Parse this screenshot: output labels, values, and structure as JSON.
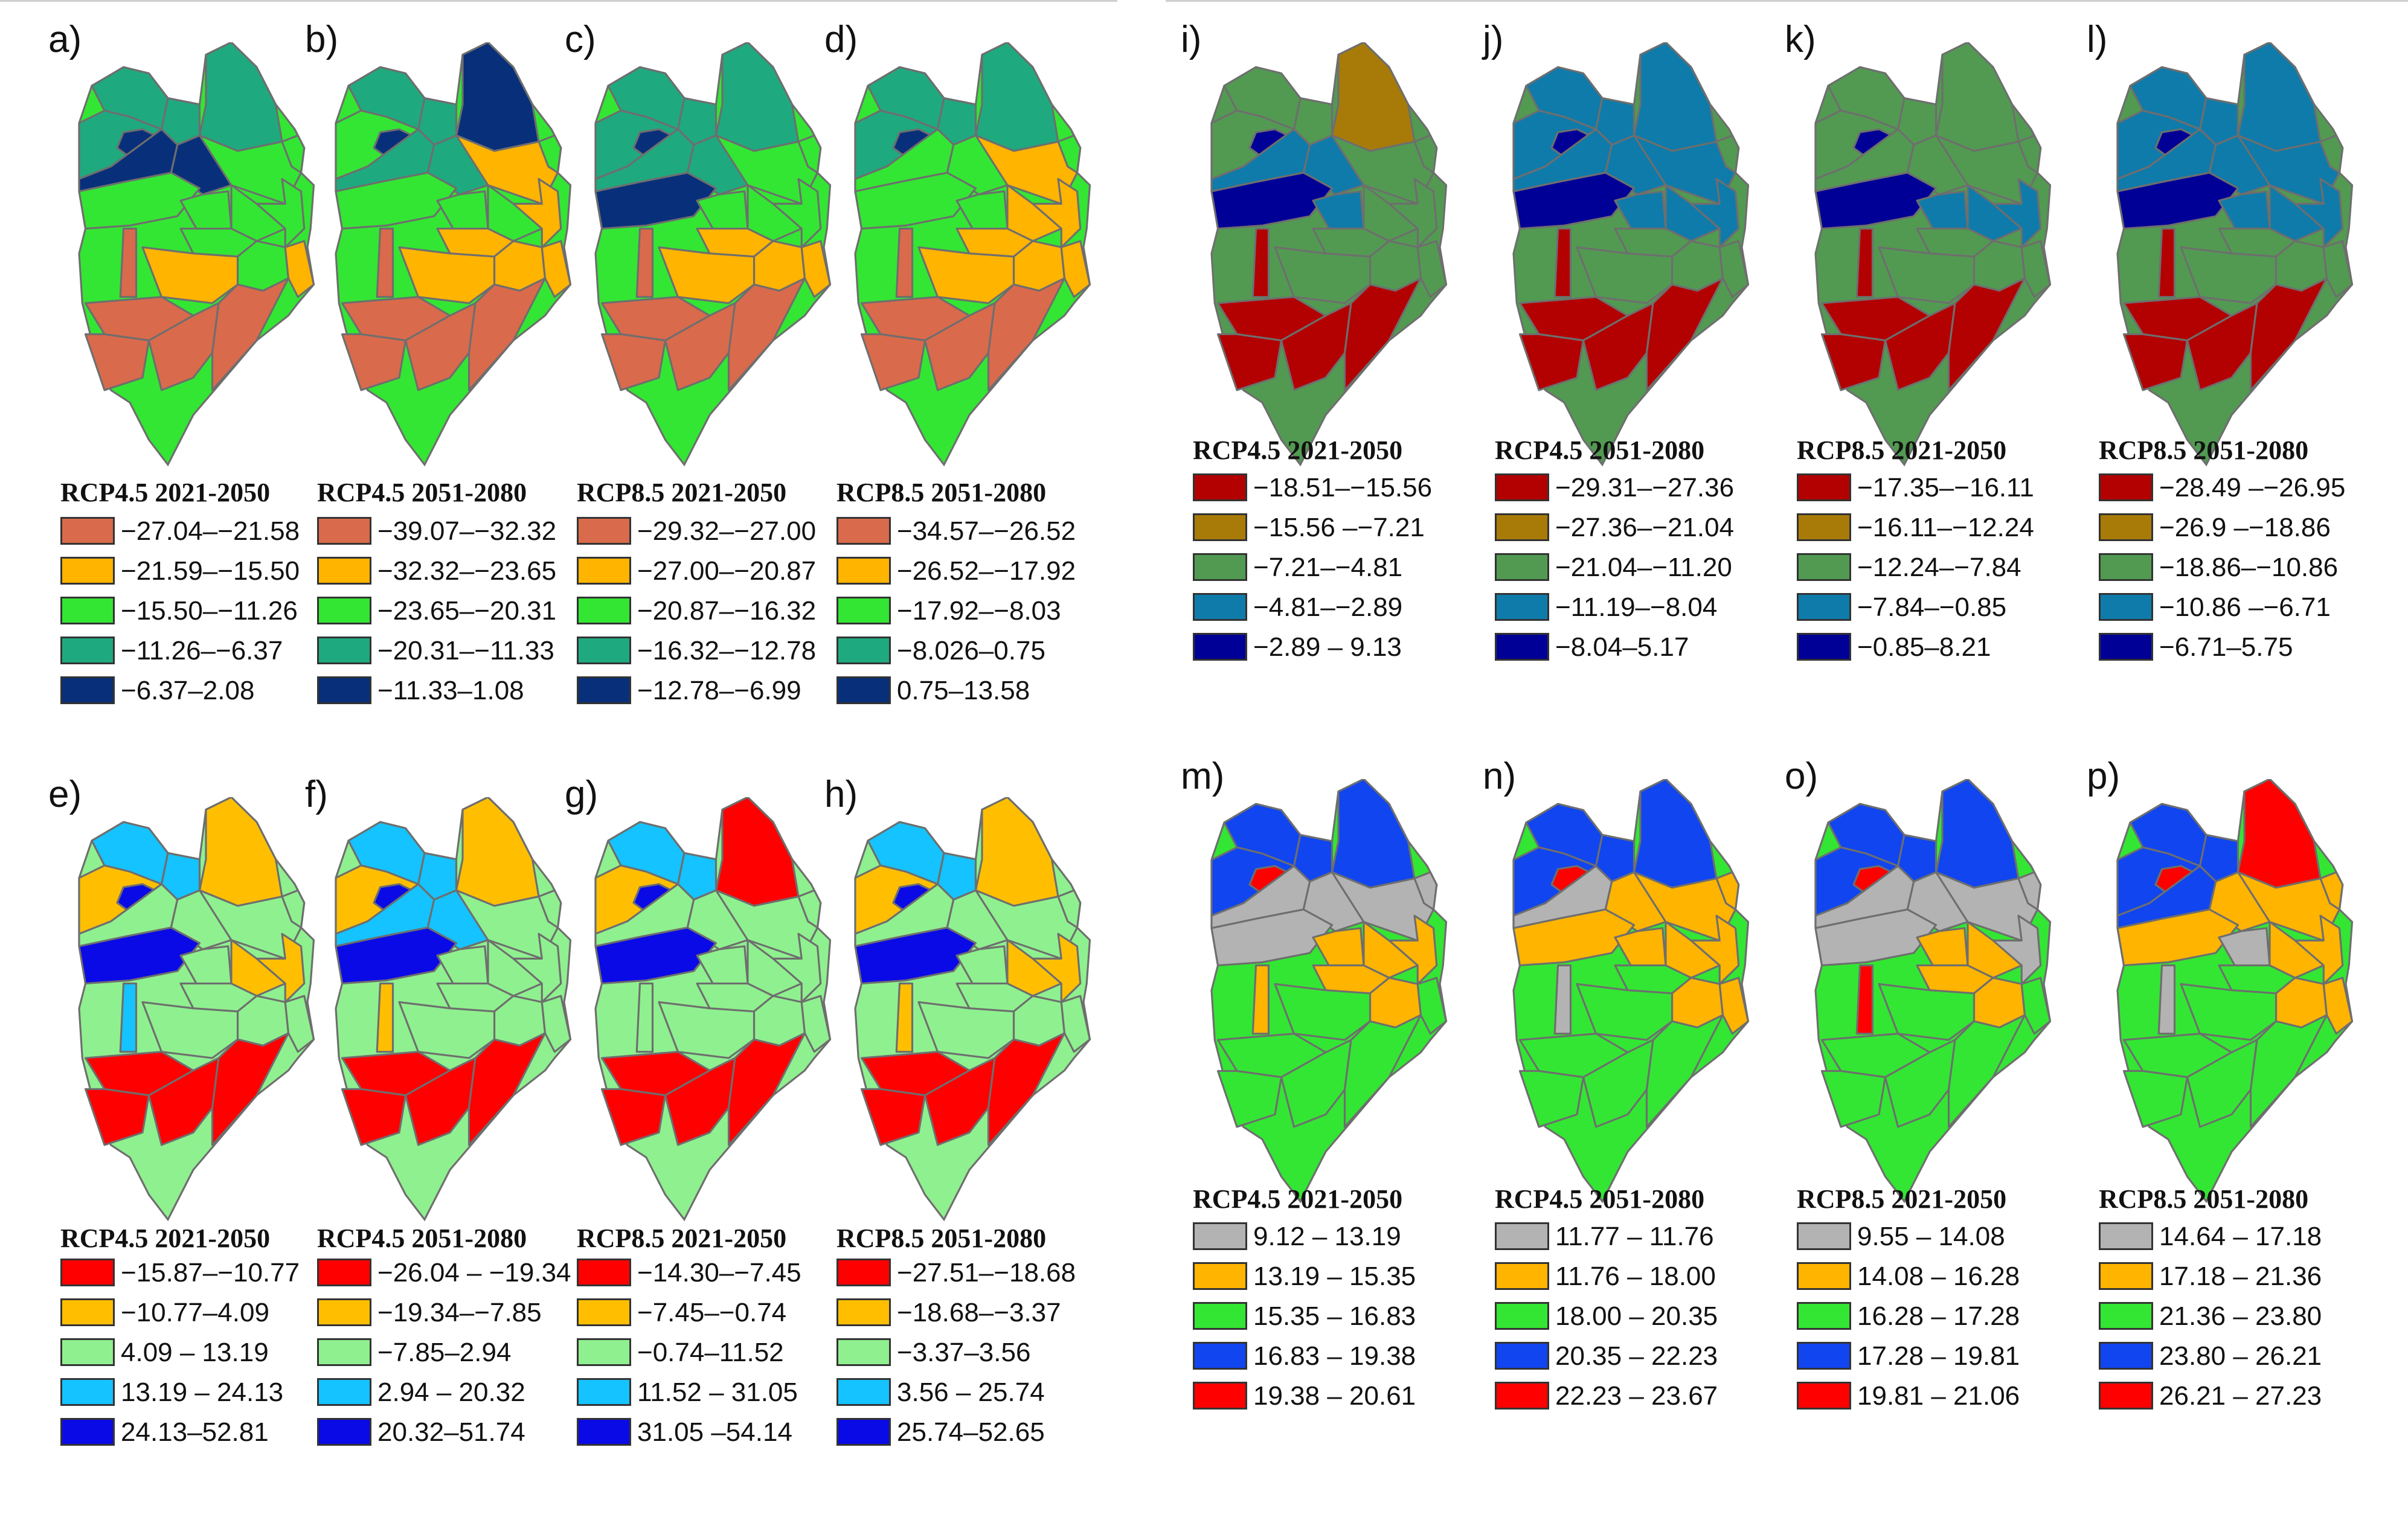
{
  "figure": {
    "groups": [
      {
        "colors": [
          "#d96a4c",
          "#ffb400",
          "#33e633",
          "#1fa97f",
          "#082f7a"
        ],
        "panels": [
          {
            "letter": "a)",
            "title": "RCP4.5 2021-2050",
            "classes": [
              "−27.04–−21.58",
              "−21.59–−15.50",
              "−15.50–−11.26",
              "−11.26–−6.37",
              "−6.37–2.08"
            ],
            "regions": [
              3,
              3,
              3,
              3,
              4,
              4,
              4,
              2,
              2,
              2,
              2,
              2,
              2,
              2,
              2,
              1,
              1,
              0,
              0,
              0,
              0,
              0
            ]
          },
          {
            "letter": "b)",
            "title": "RCP4.5 2051-2080",
            "classes": [
              "−39.07–−32.32",
              "−32.32–−23.65",
              "−23.65–−20.31",
              "−20.31–−11.33",
              "−11.33–1.08"
            ],
            "regions": [
              4,
              3,
              3,
              2,
              4,
              3,
              3,
              1,
              2,
              2,
              2,
              2,
              1,
              1,
              1,
              1,
              1,
              0,
              0,
              0,
              0,
              0
            ]
          },
          {
            "letter": "c)",
            "title": "RCP8.5 2021-2050",
            "classes": [
              "−29.32–−27.00",
              "−27.00–−20.87",
              "−20.87–−16.32",
              "−16.32–−12.78",
              "−12.78–−6.99"
            ],
            "regions": [
              3,
              3,
              3,
              3,
              4,
              3,
              3,
              2,
              2,
              4,
              2,
              2,
              2,
              1,
              1,
              1,
              1,
              0,
              0,
              0,
              0,
              0
            ]
          },
          {
            "letter": "d)",
            "title": "RCP8.5 2051-2080",
            "classes": [
              "−34.57–−26.52",
              "−26.52–−17.92",
              "−17.92–−8.03",
              "−8.026–0.75",
              "0.75–13.58"
            ],
            "regions": [
              3,
              3,
              3,
              3,
              4,
              2,
              2,
              1,
              2,
              2,
              2,
              1,
              1,
              1,
              1,
              1,
              1,
              0,
              0,
              0,
              0,
              0
            ]
          }
        ]
      },
      {
        "colors": [
          "#ff0000",
          "#ffbf00",
          "#8ff08f",
          "#14c3ff",
          "#0a0ae6"
        ],
        "panels": [
          {
            "letter": "e)",
            "title": "RCP4.5 2021-2050",
            "classes": [
              "−15.87–−10.77",
              "−10.77–4.09",
              "4.09 – 13.19",
              "13.19 – 24.13",
              "24.13–52.81"
            ],
            "regions": [
              1,
              3,
              3,
              1,
              4,
              2,
              2,
              2,
              2,
              4,
              2,
              1,
              1,
              2,
              2,
              2,
              2,
              0,
              0,
              0,
              0,
              3
            ]
          },
          {
            "letter": "f)",
            "title": "RCP4.5 2051-2080",
            "classes": [
              "−26.04 – −19.34",
              "−19.34–−7.85",
              "−7.85–2.94",
              "2.94 – 20.32",
              "20.32–51.74"
            ],
            "regions": [
              1,
              3,
              3,
              1,
              4,
              3,
              3,
              2,
              2,
              4,
              2,
              2,
              2,
              2,
              2,
              2,
              2,
              0,
              0,
              0,
              0,
              1
            ]
          },
          {
            "letter": "g)",
            "title": "RCP8.5 2021-2050",
            "classes": [
              "−14.30–−7.45",
              "−7.45–−0.74",
              "−0.74–11.52",
              "11.52 – 31.05",
              "31.05 –54.14"
            ],
            "regions": [
              0,
              3,
              3,
              1,
              4,
              2,
              2,
              2,
              2,
              4,
              2,
              2,
              2,
              2,
              2,
              2,
              2,
              0,
              0,
              0,
              0,
              2
            ]
          },
          {
            "letter": "h)",
            "title": "RCP8.5 2051-2080",
            "classes": [
              "−27.51–−18.68",
              "−18.68–−3.37",
              "−3.37–3.56",
              "3.56 – 25.74",
              "25.74–52.65"
            ],
            "regions": [
              1,
              3,
              3,
              1,
              4,
              2,
              2,
              2,
              2,
              4,
              2,
              1,
              1,
              2,
              2,
              2,
              2,
              0,
              0,
              0,
              0,
              1
            ]
          }
        ]
      },
      {
        "colors": [
          "#b30000",
          "#a87b08",
          "#529a52",
          "#0f7baa",
          "#000096"
        ],
        "panels": [
          {
            "letter": "i)",
            "title": "RCP4.5 2021-2050",
            "classes": [
              "−18.51–−15.56",
              "−15.56 –−7.21",
              "−7.21–−4.81",
              "−4.81–−2.89",
              "−2.89 – 9.13"
            ],
            "regions": [
              1,
              2,
              2,
              2,
              4,
              3,
              3,
              2,
              2,
              4,
              3,
              2,
              2,
              2,
              2,
              2,
              2,
              0,
              0,
              0,
              0,
              0
            ]
          },
          {
            "letter": "j)",
            "title": "RCP4.5 2051-2080",
            "classes": [
              "−29.31–−27.36",
              "−27.36–−21.04",
              "−21.04–−11.20",
              "−11.19–−8.04",
              "−8.04–5.17"
            ],
            "regions": [
              3,
              3,
              3,
              3,
              4,
              3,
              3,
              3,
              2,
              4,
              3,
              3,
              3,
              2,
              2,
              2,
              2,
              0,
              0,
              0,
              0,
              0
            ]
          },
          {
            "letter": "k)",
            "title": "RCP8.5 2021-2050",
            "classes": [
              "−17.35–−16.11",
              "−16.11–−12.24",
              "−12.24–−7.84",
              "−7.84–−0.85",
              "−0.85–8.21"
            ],
            "regions": [
              2,
              2,
              2,
              2,
              4,
              2,
              2,
              2,
              2,
              4,
              3,
              3,
              3,
              2,
              2,
              2,
              2,
              0,
              0,
              0,
              0,
              0
            ]
          },
          {
            "letter": "l)",
            "title": "RCP8.5 2051-2080",
            "classes": [
              "−28.49 –−26.95",
              "−26.9 –−18.86",
              "−18.86–−10.86",
              "−10.86 –−6.71",
              "−6.71–5.75"
            ],
            "regions": [
              3,
              3,
              3,
              3,
              4,
              3,
              3,
              3,
              2,
              4,
              3,
              3,
              3,
              2,
              2,
              2,
              2,
              0,
              0,
              0,
              0,
              0
            ]
          }
        ]
      },
      {
        "colors": [
          "#b3b3b3",
          "#ffb400",
          "#33e633",
          "#1045f0",
          "#ff0000"
        ],
        "panels": [
          {
            "letter": "m)",
            "title": "RCP4.5 2021-2050",
            "classes": [
              "9.12 – 13.19",
              "13.19 – 15.35",
              "15.35 – 16.83",
              "16.83 – 19.38",
              "19.38 – 20.61"
            ],
            "regions": [
              3,
              3,
              3,
              3,
              4,
              0,
              0,
              0,
              0,
              0,
              1,
              1,
              1,
              1,
              1,
              2,
              2,
              2,
              2,
              2,
              2,
              1
            ]
          },
          {
            "letter": "n)",
            "title": "RCP4.5 2051-2080",
            "classes": [
              "11.77 – 11.76",
              "11.76 – 18.00",
              "18.00 – 20.35",
              "20.35 – 22.23",
              "22.23 – 23.67"
            ],
            "regions": [
              3,
              3,
              3,
              3,
              4,
              0,
              1,
              1,
              1,
              1,
              1,
              1,
              1,
              2,
              1,
              1,
              2,
              2,
              2,
              2,
              2,
              0
            ]
          },
          {
            "letter": "o)",
            "title": "RCP8.5 2021-2050",
            "classes": [
              "9.55 – 14.08",
              "14.08 – 16.28",
              "16.28 – 17.28",
              "17.28 – 19.81",
              "19.81 – 21.06"
            ],
            "regions": [
              3,
              3,
              3,
              3,
              4,
              0,
              0,
              0,
              0,
              0,
              1,
              1,
              0,
              1,
              1,
              2,
              2,
              2,
              2,
              2,
              2,
              4
            ]
          },
          {
            "letter": "p)",
            "title": "RCP8.5 2051-2080",
            "classes": [
              "14.64 – 17.18",
              "17.18 – 21.36",
              "21.36 – 23.80",
              "23.80 – 26.21",
              "26.21 – 27.23"
            ],
            "regions": [
              4,
              3,
              3,
              3,
              4,
              3,
              1,
              1,
              1,
              1,
              0,
              1,
              1,
              2,
              1,
              1,
              2,
              2,
              2,
              2,
              2,
              0
            ]
          }
        ]
      }
    ]
  }
}
